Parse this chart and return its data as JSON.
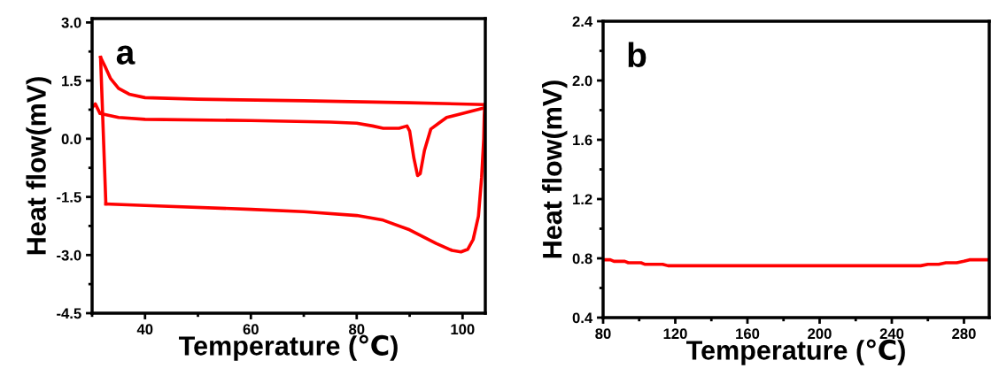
{
  "chart_data": [
    {
      "type": "line",
      "xlabel": "Temperature (℃)",
      "ylabel": "Heat flow(mV)",
      "annotations": [
        "a"
      ],
      "grid": false,
      "marker": "none",
      "line_style": "solid",
      "xlim": [
        30,
        104.3
      ],
      "ylim": [
        -4.5,
        3.1
      ],
      "xticks": [
        40,
        60,
        80,
        100
      ],
      "yticks": [
        {
          "value": -4.5,
          "label": "-4.5"
        },
        {
          "value": -3.0,
          "label": "-3.0"
        },
        {
          "value": -1.5,
          "label": "-1.5"
        },
        {
          "value": 0,
          "label": "0.0"
        },
        {
          "value": 1.5,
          "label": "1.5"
        },
        {
          "value": 3.0,
          "label": "3.0"
        }
      ],
      "series": [
        {
          "color": "#ff0000",
          "x": [
            30,
            30.6,
            31.5,
            35,
            40,
            60,
            75,
            80,
            83,
            85,
            88,
            89.5,
            90,
            90.8,
            91.5,
            92,
            92.8,
            94,
            95.5,
            97,
            100,
            104.2
          ],
          "values": [
            0.8,
            0.9,
            0.65,
            0.55,
            0.5,
            0.47,
            0.43,
            0.4,
            0.33,
            0.27,
            0.27,
            0.33,
            0.2,
            -0.5,
            -0.95,
            -0.9,
            -0.3,
            0.25,
            0.4,
            0.55,
            0.65,
            0.8
          ]
        },
        {
          "color": "#ff0000",
          "x": [
            31.6,
            32.5,
            33.5,
            35,
            37,
            40,
            50,
            70,
            90,
            104.2
          ],
          "values": [
            2.1,
            1.85,
            1.55,
            1.3,
            1.15,
            1.06,
            1.02,
            0.98,
            0.93,
            0.88
          ]
        },
        {
          "color": "#ff0000",
          "x": [
            31.6,
            32.6
          ],
          "values": [
            2.1,
            -1.68
          ]
        },
        {
          "color": "#ff0000",
          "x": [
            32.6,
            40,
            60,
            70,
            80,
            85,
            90,
            95,
            98,
            99.7,
            101,
            102,
            103,
            103.6,
            104,
            104.1,
            104.2
          ],
          "values": [
            -1.68,
            -1.72,
            -1.82,
            -1.88,
            -1.98,
            -2.1,
            -2.35,
            -2.7,
            -2.88,
            -2.92,
            -2.85,
            -2.6,
            -2.0,
            -1.0,
            0,
            0.6,
            0.88
          ]
        }
      ]
    },
    {
      "type": "line",
      "xlabel": "Temperature (℃)",
      "ylabel": "Heat flow(mV)",
      "annotations": [
        "b"
      ],
      "grid": false,
      "marker": "none",
      "line_style": "solid",
      "xlim": [
        80,
        294
      ],
      "ylim": [
        0.4,
        2.4
      ],
      "xticks": [
        80,
        120,
        160,
        200,
        240,
        280
      ],
      "yticks": [
        {
          "value": 0.4,
          "label": "0.4"
        },
        {
          "value": 0.8,
          "label": "0.8"
        },
        {
          "value": 1.2,
          "label": "1.2"
        },
        {
          "value": 1.6,
          "label": "1.6"
        },
        {
          "value": 2.0,
          "label": "2.0"
        },
        {
          "value": 2.4,
          "label": "2.4"
        }
      ],
      "series": [
        {
          "color": "#ff0000",
          "x": [
            80,
            84,
            86,
            92,
            94,
            101,
            103,
            113,
            116,
            150,
            200,
            240,
            256,
            260,
            266,
            270,
            276,
            280,
            283,
            294
          ],
          "values": [
            0.79,
            0.79,
            0.78,
            0.78,
            0.77,
            0.77,
            0.76,
            0.76,
            0.75,
            0.75,
            0.75,
            0.75,
            0.75,
            0.76,
            0.76,
            0.77,
            0.77,
            0.78,
            0.79,
            0.79
          ]
        }
      ]
    }
  ]
}
